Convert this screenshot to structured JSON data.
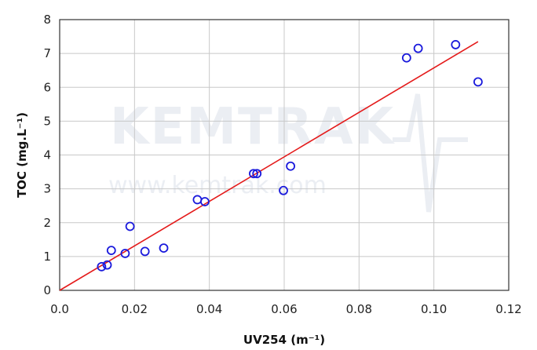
{
  "watermark": {
    "brand": "KEMTRAK",
    "url": "www.kemtrak.com"
  },
  "chart_data": {
    "type": "scatter",
    "xlabel": "UV254 (m⁻¹)",
    "ylabel": "TOC (mg.L⁻¹)",
    "xlim": [
      0.0,
      0.12
    ],
    "ylim": [
      0,
      8
    ],
    "x_ticks": [
      "0.0",
      "0.02",
      "0.04",
      "0.06",
      "0.08",
      "0.10",
      "0.12"
    ],
    "y_ticks": [
      "0",
      "1",
      "2",
      "3",
      "4",
      "5",
      "6",
      "7",
      "8"
    ],
    "grid": true,
    "marker_color": "#1a1adc",
    "fit_line_color": "#e41a1a",
    "series": [
      {
        "points": [
          {
            "x": 0.0112,
            "y": 0.7
          },
          {
            "x": 0.0127,
            "y": 0.75
          },
          {
            "x": 0.0138,
            "y": 1.18
          },
          {
            "x": 0.0175,
            "y": 1.09
          },
          {
            "x": 0.0188,
            "y": 1.89
          },
          {
            "x": 0.0228,
            "y": 1.15
          },
          {
            "x": 0.0278,
            "y": 1.25
          },
          {
            "x": 0.0368,
            "y": 2.68
          },
          {
            "x": 0.0388,
            "y": 2.62
          },
          {
            "x": 0.0518,
            "y": 3.45
          },
          {
            "x": 0.0527,
            "y": 3.45
          },
          {
            "x": 0.0598,
            "y": 2.95
          },
          {
            "x": 0.0617,
            "y": 3.67
          },
          {
            "x": 0.0927,
            "y": 6.87
          },
          {
            "x": 0.0958,
            "y": 7.15
          },
          {
            "x": 0.1058,
            "y": 7.26
          },
          {
            "x": 0.1118,
            "y": 6.16
          }
        ]
      }
    ],
    "fit_line": {
      "x": [
        0.0,
        0.1118
      ],
      "y": [
        0.0,
        7.35
      ]
    }
  }
}
